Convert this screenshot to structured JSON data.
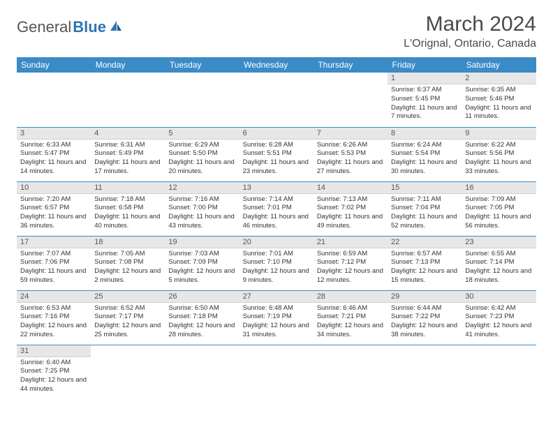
{
  "logo": {
    "general": "General",
    "blue": "Blue"
  },
  "title": "March 2024",
  "location": "L'Orignal, Ontario, Canada",
  "colors": {
    "headerBg": "#3b8bc7",
    "dayNumBg": "#e7e7e7",
    "border": "#3b8bc7"
  },
  "weekdays": [
    "Sunday",
    "Monday",
    "Tuesday",
    "Wednesday",
    "Thursday",
    "Friday",
    "Saturday"
  ],
  "weeks": [
    [
      null,
      null,
      null,
      null,
      null,
      {
        "n": "1",
        "sr": "Sunrise: 6:37 AM",
        "ss": "Sunset: 5:45 PM",
        "dl": "Daylight: 11 hours and 7 minutes."
      },
      {
        "n": "2",
        "sr": "Sunrise: 6:35 AM",
        "ss": "Sunset: 5:46 PM",
        "dl": "Daylight: 11 hours and 11 minutes."
      }
    ],
    [
      {
        "n": "3",
        "sr": "Sunrise: 6:33 AM",
        "ss": "Sunset: 5:47 PM",
        "dl": "Daylight: 11 hours and 14 minutes."
      },
      {
        "n": "4",
        "sr": "Sunrise: 6:31 AM",
        "ss": "Sunset: 5:49 PM",
        "dl": "Daylight: 11 hours and 17 minutes."
      },
      {
        "n": "5",
        "sr": "Sunrise: 6:29 AM",
        "ss": "Sunset: 5:50 PM",
        "dl": "Daylight: 11 hours and 20 minutes."
      },
      {
        "n": "6",
        "sr": "Sunrise: 6:28 AM",
        "ss": "Sunset: 5:51 PM",
        "dl": "Daylight: 11 hours and 23 minutes."
      },
      {
        "n": "7",
        "sr": "Sunrise: 6:26 AM",
        "ss": "Sunset: 5:53 PM",
        "dl": "Daylight: 11 hours and 27 minutes."
      },
      {
        "n": "8",
        "sr": "Sunrise: 6:24 AM",
        "ss": "Sunset: 5:54 PM",
        "dl": "Daylight: 11 hours and 30 minutes."
      },
      {
        "n": "9",
        "sr": "Sunrise: 6:22 AM",
        "ss": "Sunset: 5:56 PM",
        "dl": "Daylight: 11 hours and 33 minutes."
      }
    ],
    [
      {
        "n": "10",
        "sr": "Sunrise: 7:20 AM",
        "ss": "Sunset: 6:57 PM",
        "dl": "Daylight: 11 hours and 36 minutes."
      },
      {
        "n": "11",
        "sr": "Sunrise: 7:18 AM",
        "ss": "Sunset: 6:58 PM",
        "dl": "Daylight: 11 hours and 40 minutes."
      },
      {
        "n": "12",
        "sr": "Sunrise: 7:16 AM",
        "ss": "Sunset: 7:00 PM",
        "dl": "Daylight: 11 hours and 43 minutes."
      },
      {
        "n": "13",
        "sr": "Sunrise: 7:14 AM",
        "ss": "Sunset: 7:01 PM",
        "dl": "Daylight: 11 hours and 46 minutes."
      },
      {
        "n": "14",
        "sr": "Sunrise: 7:13 AM",
        "ss": "Sunset: 7:02 PM",
        "dl": "Daylight: 11 hours and 49 minutes."
      },
      {
        "n": "15",
        "sr": "Sunrise: 7:11 AM",
        "ss": "Sunset: 7:04 PM",
        "dl": "Daylight: 11 hours and 52 minutes."
      },
      {
        "n": "16",
        "sr": "Sunrise: 7:09 AM",
        "ss": "Sunset: 7:05 PM",
        "dl": "Daylight: 11 hours and 56 minutes."
      }
    ],
    [
      {
        "n": "17",
        "sr": "Sunrise: 7:07 AM",
        "ss": "Sunset: 7:06 PM",
        "dl": "Daylight: 11 hours and 59 minutes."
      },
      {
        "n": "18",
        "sr": "Sunrise: 7:05 AM",
        "ss": "Sunset: 7:08 PM",
        "dl": "Daylight: 12 hours and 2 minutes."
      },
      {
        "n": "19",
        "sr": "Sunrise: 7:03 AM",
        "ss": "Sunset: 7:09 PM",
        "dl": "Daylight: 12 hours and 5 minutes."
      },
      {
        "n": "20",
        "sr": "Sunrise: 7:01 AM",
        "ss": "Sunset: 7:10 PM",
        "dl": "Daylight: 12 hours and 9 minutes."
      },
      {
        "n": "21",
        "sr": "Sunrise: 6:59 AM",
        "ss": "Sunset: 7:12 PM",
        "dl": "Daylight: 12 hours and 12 minutes."
      },
      {
        "n": "22",
        "sr": "Sunrise: 6:57 AM",
        "ss": "Sunset: 7:13 PM",
        "dl": "Daylight: 12 hours and 15 minutes."
      },
      {
        "n": "23",
        "sr": "Sunrise: 6:55 AM",
        "ss": "Sunset: 7:14 PM",
        "dl": "Daylight: 12 hours and 18 minutes."
      }
    ],
    [
      {
        "n": "24",
        "sr": "Sunrise: 6:53 AM",
        "ss": "Sunset: 7:16 PM",
        "dl": "Daylight: 12 hours and 22 minutes."
      },
      {
        "n": "25",
        "sr": "Sunrise: 6:52 AM",
        "ss": "Sunset: 7:17 PM",
        "dl": "Daylight: 12 hours and 25 minutes."
      },
      {
        "n": "26",
        "sr": "Sunrise: 6:50 AM",
        "ss": "Sunset: 7:18 PM",
        "dl": "Daylight: 12 hours and 28 minutes."
      },
      {
        "n": "27",
        "sr": "Sunrise: 6:48 AM",
        "ss": "Sunset: 7:19 PM",
        "dl": "Daylight: 12 hours and 31 minutes."
      },
      {
        "n": "28",
        "sr": "Sunrise: 6:46 AM",
        "ss": "Sunset: 7:21 PM",
        "dl": "Daylight: 12 hours and 34 minutes."
      },
      {
        "n": "29",
        "sr": "Sunrise: 6:44 AM",
        "ss": "Sunset: 7:22 PM",
        "dl": "Daylight: 12 hours and 38 minutes."
      },
      {
        "n": "30",
        "sr": "Sunrise: 6:42 AM",
        "ss": "Sunset: 7:23 PM",
        "dl": "Daylight: 12 hours and 41 minutes."
      }
    ],
    [
      {
        "n": "31",
        "sr": "Sunrise: 6:40 AM",
        "ss": "Sunset: 7:25 PM",
        "dl": "Daylight: 12 hours and 44 minutes."
      },
      null,
      null,
      null,
      null,
      null,
      null
    ]
  ]
}
